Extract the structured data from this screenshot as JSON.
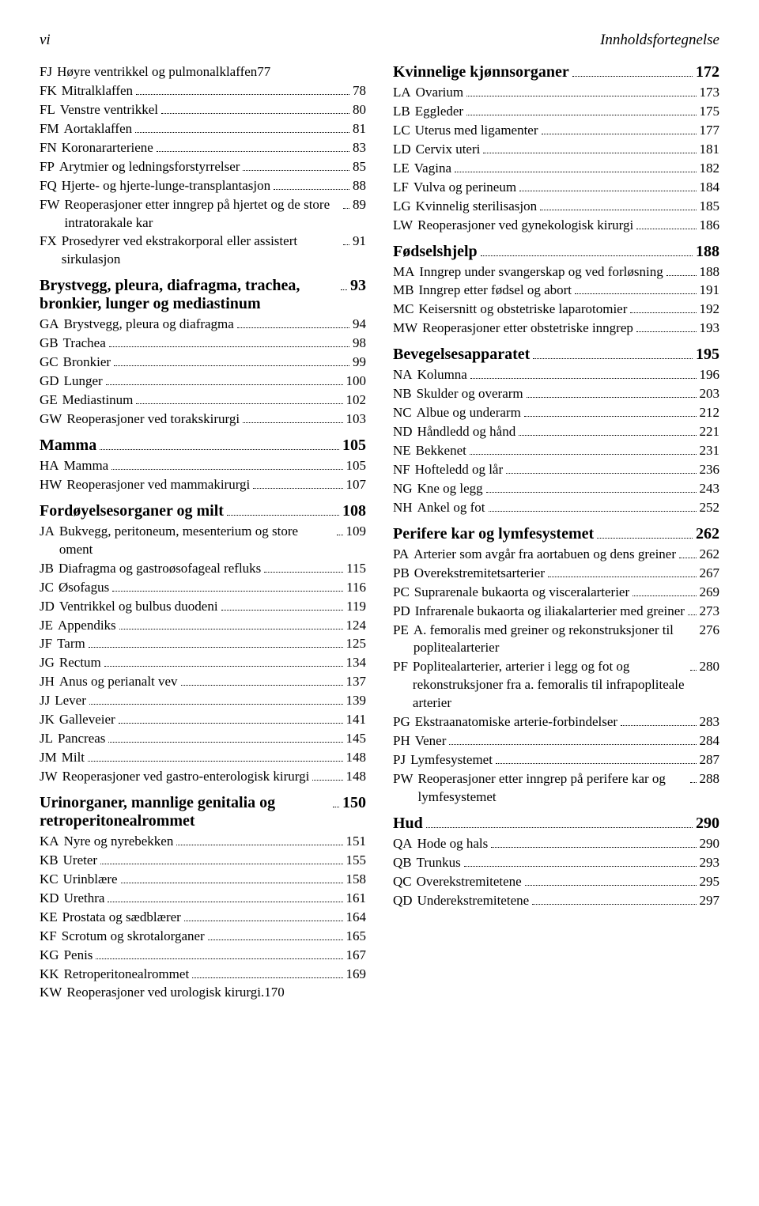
{
  "header": {
    "left": "vi",
    "right": "Innholdsfortegnelse"
  },
  "typography": {
    "body_font": "Garamond/Georgia serif",
    "body_size_pt": 12,
    "section_size_pt": 14,
    "header_size_pt": 13,
    "text_color": "#000000",
    "background": "#ffffff"
  },
  "left": [
    {
      "t": "entry",
      "code": "FJ",
      "label": "Høyre ventrikkel og pulmonalklaffen",
      "page": "77",
      "nodots": true,
      "indent": 0
    },
    {
      "t": "entry",
      "code": "FK",
      "label": "Mitralklaffen",
      "page": "78",
      "indent": 0
    },
    {
      "t": "entry",
      "code": "FL",
      "label": "Venstre ventrikkel",
      "page": "80",
      "indent": 0
    },
    {
      "t": "entry",
      "code": "FM",
      "label": "Aortaklaffen",
      "page": "81",
      "indent": 0
    },
    {
      "t": "entry",
      "code": "FN",
      "label": "Koronararteriene",
      "page": "83",
      "indent": 0
    },
    {
      "t": "entry",
      "code": "FP",
      "label": "Arytmier og ledningsforstyrrelser",
      "page": "85",
      "indent": 0
    },
    {
      "t": "entry",
      "code": "FQ",
      "label": "Hjerte- og hjerte-lunge-transplantasjon",
      "page": "88",
      "indent": 0
    },
    {
      "t": "entry",
      "code": "FW",
      "label": "Reoperasjoner etter inngrep på hjertet og de store intratorakale kar",
      "page": "89",
      "indent": 0
    },
    {
      "t": "entry",
      "code": "FX",
      "label": "Prosedyrer ved ekstrakorporal eller assistert sirkulasjon",
      "page": "91",
      "indent": 0
    },
    {
      "t": "section",
      "label": "Brystvegg, pleura, diafragma, trachea, bronkier, lunger og mediastinum",
      "page": "93"
    },
    {
      "t": "entry",
      "code": "GA",
      "label": "Brystvegg, pleura og diafragma",
      "page": "94",
      "indent": 0
    },
    {
      "t": "entry",
      "code": "GB",
      "label": "Trachea",
      "page": "98",
      "indent": 0
    },
    {
      "t": "entry",
      "code": "GC",
      "label": "Bronkier",
      "page": "99",
      "indent": 0
    },
    {
      "t": "entry",
      "code": "GD",
      "label": "Lunger",
      "page": "100",
      "indent": 0
    },
    {
      "t": "entry",
      "code": "GE",
      "label": "Mediastinum",
      "page": "102",
      "indent": 0
    },
    {
      "t": "entry",
      "code": "GW",
      "label": "Reoperasjoner ved torakskirurgi",
      "page": "103",
      "indent": 0,
      "tight": true
    },
    {
      "t": "section",
      "label": "Mamma",
      "page": "105"
    },
    {
      "t": "entry",
      "code": "HA",
      "label": "Mamma",
      "page": "105",
      "indent": 0
    },
    {
      "t": "entry",
      "code": "HW",
      "label": "Reoperasjoner ved mammakirurgi",
      "page": "107",
      "indent": 0,
      "tight": true
    },
    {
      "t": "section",
      "label": "Fordøyelsesorganer og milt",
      "page": "108"
    },
    {
      "t": "entry",
      "code": "JA",
      "label": "Bukvegg, peritoneum, mesenterium og store oment",
      "page": "109",
      "indent": 0
    },
    {
      "t": "entry",
      "code": "JB",
      "label": "Diafragma og gastroøsofageal refluks",
      "page": "115",
      "indent": 0
    },
    {
      "t": "entry",
      "code": "JC",
      "label": "Øsofagus",
      "page": "116",
      "indent": 0
    },
    {
      "t": "entry",
      "code": "JD",
      "label": "Ventrikkel og bulbus duodeni",
      "page": "119",
      "indent": 0
    },
    {
      "t": "entry",
      "code": "JE",
      "label": "Appendiks",
      "page": "124",
      "indent": 0
    },
    {
      "t": "entry",
      "code": "JF",
      "label": "Tarm",
      "page": "125",
      "indent": 0
    },
    {
      "t": "entry",
      "code": "JG",
      "label": "Rectum",
      "page": "134",
      "indent": 0
    },
    {
      "t": "entry",
      "code": "JH",
      "label": "Anus og perianalt vev",
      "page": "137",
      "indent": 0
    },
    {
      "t": "entry",
      "code": "JJ",
      "label": "Lever",
      "page": "139",
      "indent": 0
    },
    {
      "t": "entry",
      "code": "JK",
      "label": "Galleveier",
      "page": "141",
      "indent": 0
    },
    {
      "t": "entry",
      "code": "JL",
      "label": "Pancreas",
      "page": "145",
      "indent": 0
    },
    {
      "t": "entry",
      "code": "JM",
      "label": "Milt",
      "page": "148",
      "indent": 0
    },
    {
      "t": "entry",
      "code": "JW",
      "label": "Reoperasjoner ved gastro-enterologisk kirurgi",
      "page": "148",
      "indent": 0
    },
    {
      "t": "section",
      "label": "Urinorganer, mannlige genitalia og retroperitonealrommet",
      "page": "150"
    },
    {
      "t": "entry",
      "code": "KA",
      "label": "Nyre og nyrebekken",
      "page": "151",
      "indent": 0
    },
    {
      "t": "entry",
      "code": "KB",
      "label": "Ureter",
      "page": "155",
      "indent": 0
    },
    {
      "t": "entry",
      "code": "KC",
      "label": "Urinblære",
      "page": "158",
      "indent": 0
    },
    {
      "t": "entry",
      "code": "KD",
      "label": "Urethra",
      "page": "161",
      "indent": 0
    },
    {
      "t": "entry",
      "code": "KE",
      "label": "Prostata og sædblærer",
      "page": "164",
      "indent": 0
    },
    {
      "t": "entry",
      "code": "KF",
      "label": "Scrotum og skrotalorganer",
      "page": "165",
      "indent": 0
    },
    {
      "t": "entry",
      "code": "KG",
      "label": "Penis",
      "page": "167",
      "indent": 0
    },
    {
      "t": "entry",
      "code": "KK",
      "label": "Retroperitonealrommet",
      "page": "169",
      "indent": 0
    },
    {
      "t": "entry",
      "code": "KW",
      "label": "Reoperasjoner ved urologisk kirurgi.",
      "page": "170",
      "indent": 0,
      "nodots": true,
      "tight": true
    }
  ],
  "right": [
    {
      "t": "section",
      "label": "Kvinnelige kjønnsorganer",
      "page": "172",
      "first": true
    },
    {
      "t": "entry",
      "code": "LA",
      "label": "Ovarium",
      "page": "173",
      "indent": 0
    },
    {
      "t": "entry",
      "code": "LB",
      "label": "Eggleder",
      "page": "175",
      "indent": 0
    },
    {
      "t": "entry",
      "code": "LC",
      "label": "Uterus med ligamenter",
      "page": "177",
      "indent": 0
    },
    {
      "t": "entry",
      "code": "LD",
      "label": "Cervix uteri",
      "page": "181",
      "indent": 0
    },
    {
      "t": "entry",
      "code": "LE",
      "label": "Vagina",
      "page": "182",
      "indent": 0
    },
    {
      "t": "entry",
      "code": "LF",
      "label": "Vulva og perineum",
      "page": "184",
      "indent": 0
    },
    {
      "t": "entry",
      "code": "LG",
      "label": "Kvinnelig sterilisasjon",
      "page": "185",
      "indent": 0
    },
    {
      "t": "entry",
      "code": "LW",
      "label": "Reoperasjoner ved gynekologisk kirurgi",
      "page": "186",
      "indent": 0
    },
    {
      "t": "section",
      "label": "Fødselshjelp",
      "page": "188"
    },
    {
      "t": "entry",
      "code": "MA",
      "label": "Inngrep under svangerskap og ved forløsning",
      "page": "188",
      "indent": 0
    },
    {
      "t": "entry",
      "code": "MB",
      "label": "Inngrep etter fødsel og abort",
      "page": "191",
      "indent": 0
    },
    {
      "t": "entry",
      "code": "MC",
      "label": "Keisersnitt og obstetriske laparotomier",
      "page": "192",
      "indent": 0
    },
    {
      "t": "entry",
      "code": "MW",
      "label": "Reoperasjoner etter obstetriske inngrep",
      "page": "193",
      "indent": 0,
      "tight": true
    },
    {
      "t": "section",
      "label": "Bevegelsesapparatet",
      "page": "195"
    },
    {
      "t": "entry",
      "code": "NA",
      "label": "Kolumna",
      "page": "196",
      "indent": 0
    },
    {
      "t": "entry",
      "code": "NB",
      "label": "Skulder og overarm",
      "page": "203",
      "indent": 0
    },
    {
      "t": "entry",
      "code": "NC",
      "label": "Albue og underarm",
      "page": "212",
      "indent": 0
    },
    {
      "t": "entry",
      "code": "ND",
      "label": "Håndledd og hånd",
      "page": "221",
      "indent": 0
    },
    {
      "t": "entry",
      "code": "NE",
      "label": "Bekkenet",
      "page": "231",
      "indent": 0
    },
    {
      "t": "entry",
      "code": "NF",
      "label": "Hofteledd og lår",
      "page": "236",
      "indent": 0
    },
    {
      "t": "entry",
      "code": "NG",
      "label": "Kne og legg",
      "page": "243",
      "indent": 0
    },
    {
      "t": "entry",
      "code": "NH",
      "label": "Ankel og fot",
      "page": "252",
      "indent": 0
    },
    {
      "t": "section",
      "label": "Perifere kar og lymfesystemet",
      "page": "262"
    },
    {
      "t": "entry",
      "code": "PA",
      "label": "Arterier som avgår fra aortabuen og dens greiner",
      "page": "262",
      "indent": 0
    },
    {
      "t": "entry",
      "code": "PB",
      "label": "Overekstremitetsarterier",
      "page": "267",
      "indent": 0
    },
    {
      "t": "entry",
      "code": "PC",
      "label": "Suprarenale bukaorta og visceralarterier",
      "page": "269",
      "indent": 0
    },
    {
      "t": "entry",
      "code": "PD",
      "label": "Infrarenale bukaorta og iliakalarterier med greiner",
      "page": "273",
      "indent": 0
    },
    {
      "t": "entry",
      "code": "PE",
      "label": "A. femoralis med greiner og rekonstruksjoner til poplitealarterier",
      "page": "276",
      "indent": 0,
      "nodots": true
    },
    {
      "t": "entry",
      "code": "PF",
      "label": "Poplitealarterier, arterier i legg og fot og rekonstruksjoner fra a. femoralis til infrapopliteale arterier",
      "page": "280",
      "indent": 0
    },
    {
      "t": "entry",
      "code": "PG",
      "label": "Ekstraanatomiske arterie-forbindelser",
      "page": "283",
      "indent": 0
    },
    {
      "t": "entry",
      "code": "PH",
      "label": "Vener",
      "page": "284",
      "indent": 0
    },
    {
      "t": "entry",
      "code": "PJ",
      "label": "Lymfesystemet",
      "page": "287",
      "indent": 0
    },
    {
      "t": "entry",
      "code": "PW",
      "label": "Reoperasjoner etter inngrep på perifere kar og lymfesystemet",
      "page": "288",
      "indent": 0
    },
    {
      "t": "section",
      "label": "Hud",
      "page": "290"
    },
    {
      "t": "entry",
      "code": "QA",
      "label": "Hode og hals",
      "page": "290",
      "indent": 0
    },
    {
      "t": "entry",
      "code": "QB",
      "label": "Trunkus",
      "page": "293",
      "indent": 0
    },
    {
      "t": "entry",
      "code": "QC",
      "label": "Overekstremitetene",
      "page": "295",
      "indent": 0
    },
    {
      "t": "entry",
      "code": "QD",
      "label": "Underekstremitetene",
      "page": "297",
      "indent": 0
    }
  ]
}
